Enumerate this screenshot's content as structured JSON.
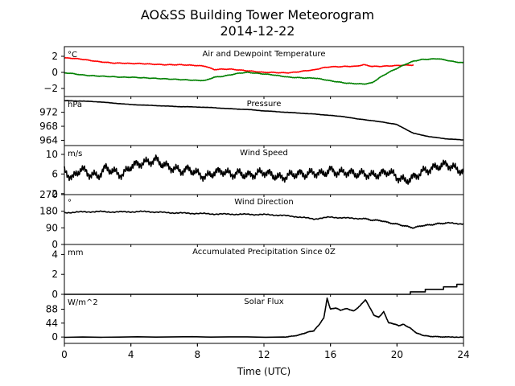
{
  "title": {
    "line1": "AO&SS Building Tower Meteorogram",
    "line2": "2014-12-22"
  },
  "chart_data": [
    {
      "type": "line",
      "title": "Air and Dewpoint Temperature",
      "unit": "°C",
      "ylim": [
        -3,
        3.2
      ],
      "yticks": [
        2,
        0,
        -2
      ],
      "series": [
        {
          "color": "#ff0000",
          "x": [
            0,
            0.5,
            1,
            1.5,
            2,
            2.5,
            3,
            3.5,
            4,
            4.5,
            5,
            5.5,
            6,
            6.5,
            7,
            7.5,
            8,
            8.5,
            9,
            9.5,
            10,
            10.5,
            11,
            11.5,
            12,
            12.5,
            13,
            13.5,
            14,
            14.5,
            15,
            15.5,
            16,
            16.5,
            17,
            17.5,
            18,
            18.5,
            19,
            19.5,
            20,
            20.5,
            21
          ],
          "values": [
            1.8,
            1.75,
            1.65,
            1.5,
            1.35,
            1.25,
            1.15,
            1.15,
            1.1,
            1.1,
            1.05,
            1.0,
            0.95,
            0.95,
            0.95,
            0.9,
            0.85,
            0.75,
            0.35,
            0.4,
            0.4,
            0.3,
            0.2,
            0.1,
            0.0,
            0.0,
            -0.05,
            -0.05,
            0.05,
            0.2,
            0.3,
            0.55,
            0.7,
            0.7,
            0.75,
            0.75,
            0.95,
            0.75,
            0.75,
            0.8,
            0.85,
            0.9,
            0.9
          ]
        },
        {
          "color": "#008000",
          "x": [
            0,
            0.5,
            1,
            1.5,
            2,
            2.5,
            3,
            3.5,
            4,
            4.5,
            5,
            5.5,
            6,
            6.5,
            7,
            7.5,
            8,
            8.5,
            9,
            9.5,
            10,
            10.5,
            11,
            11.5,
            12,
            12.5,
            13,
            13.5,
            14,
            14.5,
            15,
            15.5,
            16,
            16.5,
            17,
            17.5,
            18,
            18.5,
            19,
            19.5,
            20,
            20.5,
            21,
            21.5,
            22,
            22.5,
            23,
            23.5,
            24
          ],
          "values": [
            -0.05,
            -0.15,
            -0.3,
            -0.4,
            -0.45,
            -0.5,
            -0.55,
            -0.6,
            -0.6,
            -0.65,
            -0.7,
            -0.75,
            -0.8,
            -0.85,
            -0.9,
            -0.95,
            -1.0,
            -1.0,
            -0.6,
            -0.5,
            -0.3,
            -0.1,
            0.0,
            -0.1,
            -0.2,
            -0.3,
            -0.45,
            -0.6,
            -0.65,
            -0.7,
            -0.7,
            -0.85,
            -1.05,
            -1.2,
            -1.35,
            -1.4,
            -1.45,
            -1.3,
            -0.6,
            0.0,
            0.5,
            1.0,
            1.4,
            1.6,
            1.65,
            1.7,
            1.5,
            1.3,
            1.2
          ]
        }
      ]
    },
    {
      "type": "line",
      "title": "Pressure",
      "unit": "hPa",
      "ylim": [
        962.5,
        976.5
      ],
      "yticks": [
        972,
        968,
        964
      ],
      "series": [
        {
          "color": "#000000",
          "x": [
            0,
            1,
            2,
            3,
            4,
            5,
            6,
            7,
            8,
            9,
            10,
            11,
            12,
            13,
            14,
            15,
            16,
            16.5,
            17,
            17.5,
            18,
            18.5,
            19,
            19.5,
            20,
            20.5,
            21,
            22,
            23,
            24
          ],
          "values": [
            975.3,
            975.2,
            975.0,
            974.6,
            974.2,
            974.0,
            973.8,
            973.6,
            973.5,
            973.3,
            973.0,
            972.8,
            972.4,
            972.1,
            971.8,
            971.5,
            971.1,
            970.9,
            970.6,
            970.2,
            969.9,
            969.6,
            969.3,
            968.9,
            968.5,
            967.2,
            966.0,
            965.0,
            964.4,
            964.1
          ]
        }
      ]
    },
    {
      "type": "line",
      "title": "Wind Speed",
      "unit": "m/s",
      "ylim": [
        1.8,
        11.8
      ],
      "yticks": [
        10,
        6,
        2
      ],
      "series": [
        {
          "color": "#000000",
          "x": [
            0,
            0.5,
            1,
            1.5,
            2,
            2.5,
            3,
            3.5,
            4,
            4.5,
            5,
            5.5,
            6,
            6.5,
            7,
            7.5,
            8,
            8.5,
            9,
            9.5,
            10,
            10.5,
            11,
            11.5,
            12,
            12.5,
            13,
            13.5,
            14,
            14.5,
            15,
            15.5,
            16,
            16.5,
            17,
            17.5,
            18,
            18.5,
            19,
            19.5,
            20,
            20.5,
            21,
            21.5,
            22,
            22.5,
            23,
            23.5,
            24
          ],
          "values": [
            6.5,
            5.2,
            7.1,
            6.0,
            5.5,
            7.3,
            6.4,
            5.8,
            7.6,
            8.1,
            8.4,
            8.9,
            7.8,
            7.2,
            6.6,
            7.0,
            6.1,
            5.4,
            6.3,
            6.6,
            5.9,
            6.2,
            5.7,
            6.0,
            6.4,
            5.8,
            5.2,
            5.7,
            6.1,
            5.9,
            6.3,
            6.0,
            6.8,
            6.2,
            6.4,
            6.0,
            6.1,
            5.7,
            6.0,
            6.5,
            5.4,
            4.6,
            5.3,
            6.4,
            7.0,
            7.6,
            8.0,
            7.1,
            6.5
          ]
        }
      ]
    },
    {
      "type": "line",
      "title": "Wind Direction",
      "unit": "°",
      "ylim": [
        0,
        270
      ],
      "yticks": [
        270,
        180,
        90,
        0
      ],
      "series": [
        {
          "color": "#000000",
          "x": [
            0,
            1,
            2,
            3,
            4,
            5,
            6,
            7,
            8,
            9,
            10,
            11,
            12,
            13,
            14,
            15,
            16,
            17,
            18,
            18.5,
            19,
            19.5,
            20,
            20.5,
            21,
            21.5,
            22,
            22.5,
            23,
            24
          ],
          "values": [
            172,
            176,
            178,
            176,
            177,
            178,
            173,
            170,
            168,
            165,
            164,
            163,
            162,
            158,
            150,
            138,
            148,
            143,
            140,
            132,
            130,
            118,
            110,
            100,
            90,
            102,
            106,
            113,
            116,
            112
          ]
        }
      ]
    },
    {
      "type": "line",
      "title": "Accumulated Precipitation Since 0Z",
      "unit": "mm",
      "ylim": [
        0,
        5
      ],
      "yticks": [
        4,
        2,
        0
      ],
      "series": [
        {
          "color": "#000000",
          "x": [
            0,
            20.8,
            20.8,
            21.7,
            21.7,
            22.8,
            22.8,
            23.6,
            23.6,
            24
          ],
          "values": [
            0,
            0,
            0.25,
            0.25,
            0.5,
            0.5,
            0.75,
            0.75,
            1.0,
            1.0
          ]
        }
      ]
    },
    {
      "type": "line",
      "title": "Solar Flux",
      "unit": "W/m^2",
      "ylim": [
        -20,
        135
      ],
      "yticks": [
        88,
        44,
        0
      ],
      "series": [
        {
          "color": "#000000",
          "x": [
            0,
            13.2,
            13.8,
            14.2,
            14.6,
            15.0,
            15.3,
            15.6,
            15.8,
            16.0,
            16.3,
            16.6,
            17.0,
            17.4,
            17.8,
            18.1,
            18.3,
            18.6,
            18.9,
            19.2,
            19.5,
            19.8,
            20.1,
            20.4,
            20.8,
            21.2,
            21.6,
            22.0,
            22.5,
            23,
            24
          ],
          "values": [
            0,
            0,
            3,
            8,
            15,
            20,
            38,
            60,
            122,
            88,
            92,
            85,
            90,
            82,
            100,
            118,
            100,
            70,
            62,
            80,
            45,
            42,
            36,
            40,
            28,
            12,
            5,
            2,
            1,
            0,
            0
          ]
        }
      ]
    }
  ],
  "x_axis": {
    "label": "Time (UTC)",
    "xlim": [
      0,
      24
    ],
    "ticks": [
      0,
      4,
      8,
      12,
      16,
      20,
      24
    ]
  }
}
